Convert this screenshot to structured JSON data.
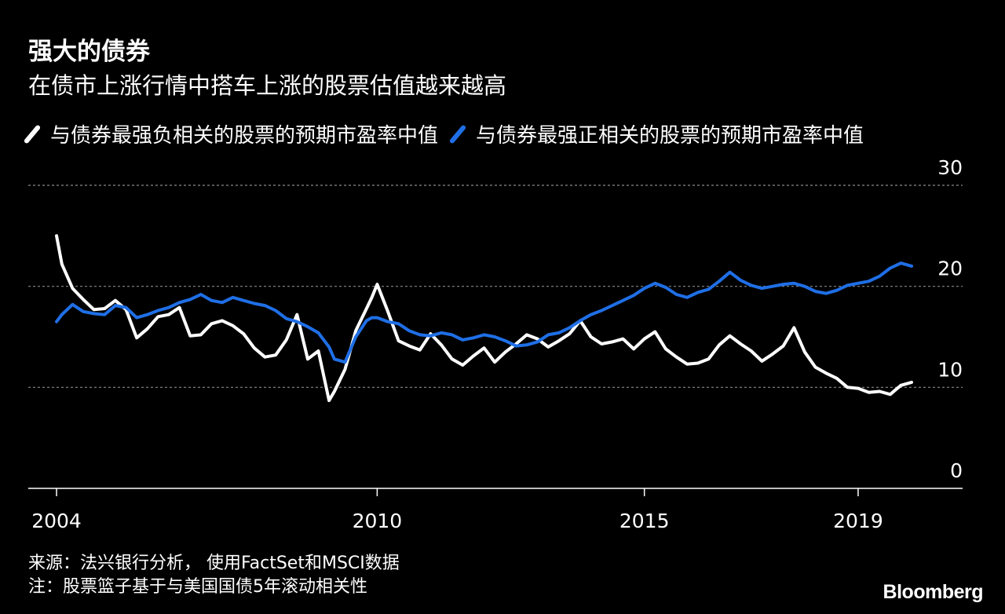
{
  "header": {
    "title": "强大的债券",
    "subtitle": "在债市上涨行情中搭车上涨的股票估值越来越高"
  },
  "footer": {
    "source": "来源：法兴银行分析， 使用FactSet和MSCI数据",
    "note": "注：股票篮子基于与美国国债5年滚动相关性",
    "logo": "Bloomberg"
  },
  "chart_data": {
    "type": "line",
    "title": "强大的债券",
    "subtitle": "在债市上涨行情中搭车上涨的股票估值越来越高",
    "xlabel": "",
    "ylabel": "",
    "x_ticks": [
      "2004",
      "2010",
      "2015",
      "2019"
    ],
    "y_ticks": [
      "0",
      "10",
      "20",
      "30"
    ],
    "xlim": [
      2004,
      2020
    ],
    "ylim": [
      0,
      30
    ],
    "grid": true,
    "legend_position": "top",
    "series": [
      {
        "name": "与债券最强负相关的股票的预期市盈率中值",
        "color": "#ffffff",
        "x": [
          2004.0,
          2004.1,
          2004.3,
          2004.5,
          2004.7,
          2004.9,
          2005.1,
          2005.3,
          2005.5,
          2005.7,
          2005.9,
          2006.1,
          2006.3,
          2006.5,
          2006.7,
          2006.9,
          2007.1,
          2007.3,
          2007.5,
          2007.7,
          2007.9,
          2008.1,
          2008.3,
          2008.5,
          2008.7,
          2008.9,
          2009.1,
          2009.2,
          2009.4,
          2009.6,
          2009.8,
          2009.9,
          2010.0,
          2010.2,
          2010.4,
          2010.6,
          2010.8,
          2011.0,
          2011.2,
          2011.4,
          2011.6,
          2011.8,
          2012.0,
          2012.2,
          2012.4,
          2012.6,
          2012.8,
          2013.0,
          2013.2,
          2013.4,
          2013.6,
          2013.8,
          2014.0,
          2014.2,
          2014.4,
          2014.6,
          2014.8,
          2015.0,
          2015.2,
          2015.4,
          2015.6,
          2015.8,
          2016.0,
          2016.2,
          2016.4,
          2016.6,
          2016.8,
          2017.0,
          2017.2,
          2017.4,
          2017.6,
          2017.8,
          2018.0,
          2018.2,
          2018.4,
          2018.6,
          2018.8,
          2019.0,
          2019.2,
          2019.4,
          2019.6,
          2019.8,
          2020.0
        ],
        "values": [
          25.0,
          22.2,
          19.8,
          18.7,
          17.7,
          17.8,
          18.6,
          17.7,
          14.9,
          15.8,
          17.0,
          17.2,
          17.9,
          15.1,
          15.2,
          16.3,
          16.6,
          16.1,
          15.3,
          13.9,
          13.0,
          13.2,
          14.7,
          17.2,
          12.8,
          13.6,
          8.7,
          9.6,
          11.8,
          15.6,
          17.8,
          18.9,
          20.2,
          17.5,
          14.6,
          14.1,
          13.7,
          15.3,
          14.2,
          12.8,
          12.2,
          13.1,
          13.9,
          12.5,
          13.5,
          14.3,
          15.2,
          14.8,
          14.0,
          14.6,
          15.3,
          16.6,
          15.0,
          14.3,
          14.5,
          14.8,
          13.8,
          14.8,
          15.5,
          13.8,
          13.0,
          12.3,
          12.4,
          12.8,
          14.2,
          15.1,
          14.3,
          13.6,
          12.6,
          13.3,
          14.1,
          15.9,
          13.5,
          12.0,
          11.4,
          10.9,
          10.0,
          9.9,
          9.5,
          9.6,
          9.3,
          10.2,
          10.5
        ]
      },
      {
        "name": "与债券最强正相关的股票的预期市盈率中值",
        "color": "#1f6fe6",
        "x": [
          2004.0,
          2004.1,
          2004.3,
          2004.5,
          2004.7,
          2004.9,
          2005.1,
          2005.3,
          2005.5,
          2005.7,
          2005.9,
          2006.1,
          2006.3,
          2006.5,
          2006.7,
          2006.9,
          2007.1,
          2007.3,
          2007.5,
          2007.7,
          2007.9,
          2008.1,
          2008.3,
          2008.5,
          2008.7,
          2008.9,
          2009.1,
          2009.2,
          2009.4,
          2009.6,
          2009.8,
          2009.9,
          2010.0,
          2010.2,
          2010.4,
          2010.6,
          2010.8,
          2011.0,
          2011.2,
          2011.4,
          2011.6,
          2011.8,
          2012.0,
          2012.2,
          2012.4,
          2012.6,
          2012.8,
          2013.0,
          2013.2,
          2013.4,
          2013.6,
          2013.8,
          2014.0,
          2014.2,
          2014.4,
          2014.6,
          2014.8,
          2015.0,
          2015.2,
          2015.4,
          2015.6,
          2015.8,
          2016.0,
          2016.2,
          2016.4,
          2016.6,
          2016.8,
          2017.0,
          2017.2,
          2017.4,
          2017.6,
          2017.8,
          2018.0,
          2018.2,
          2018.4,
          2018.6,
          2018.8,
          2019.0,
          2019.2,
          2019.4,
          2019.6,
          2019.8,
          2020.0
        ],
        "values": [
          16.5,
          17.2,
          18.2,
          17.5,
          17.3,
          17.2,
          18.1,
          17.9,
          16.9,
          17.2,
          17.6,
          17.9,
          18.4,
          18.7,
          19.2,
          18.6,
          18.4,
          18.9,
          18.6,
          18.3,
          18.1,
          17.6,
          16.8,
          16.5,
          16.0,
          15.4,
          14.0,
          12.8,
          12.5,
          15.0,
          16.6,
          16.9,
          16.9,
          16.5,
          16.3,
          15.6,
          15.2,
          15.1,
          15.4,
          15.2,
          14.7,
          14.9,
          15.2,
          15.0,
          14.6,
          14.1,
          14.2,
          14.5,
          15.2,
          15.4,
          15.9,
          16.6,
          17.2,
          17.6,
          18.1,
          18.6,
          19.1,
          19.8,
          20.3,
          19.9,
          19.2,
          18.9,
          19.4,
          19.7,
          20.5,
          21.4,
          20.6,
          20.1,
          19.8,
          20.0,
          20.2,
          20.3,
          20.0,
          19.5,
          19.3,
          19.6,
          20.1,
          20.3,
          20.5,
          21.0,
          21.8,
          22.3,
          22.0
        ]
      }
    ]
  }
}
